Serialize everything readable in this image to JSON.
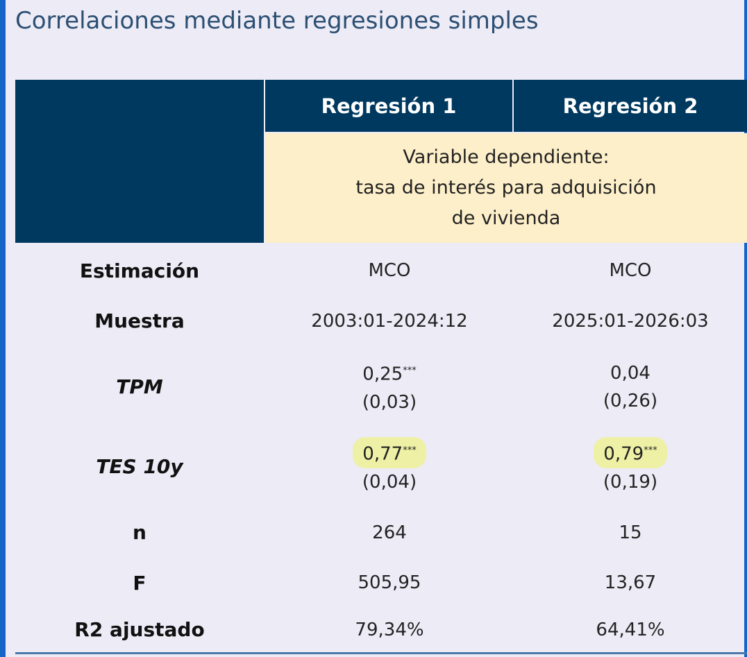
{
  "title": "Correlaciones mediante regresiones simples",
  "table": {
    "columns": [
      "Regresión 1",
      "Regresión 2"
    ],
    "dependent_variable": [
      "Variable dependiente:",
      "tasa de interés para adquisición",
      "de vivienda"
    ],
    "rows": [
      {
        "label": "Estimación",
        "italic": false,
        "cells": [
          {
            "text": "MCO"
          },
          {
            "text": "MCO"
          }
        ]
      },
      {
        "label": "Muestra",
        "italic": false,
        "cells": [
          {
            "text": "2003:01-2024:12"
          },
          {
            "text": "2025:01-2026:03"
          }
        ]
      },
      {
        "label": "TPM",
        "italic": true,
        "cells": [
          {
            "coef": "0,25",
            "stars": "***",
            "se": "(0,03)"
          },
          {
            "coef": "0,04",
            "se": "(0,26)"
          }
        ]
      },
      {
        "label": "TES 10y",
        "italic": true,
        "cells": [
          {
            "coef": "0,77",
            "stars": "***",
            "se": "(0,04)",
            "highlight": true
          },
          {
            "coef": "0,79",
            "stars": "***",
            "se": "(0,19)",
            "highlight": true
          }
        ]
      },
      {
        "label": "n",
        "italic": false,
        "cells": [
          {
            "text": "264"
          },
          {
            "text": "15"
          }
        ]
      },
      {
        "label": "F",
        "italic": false,
        "cells": [
          {
            "text": "505,95"
          },
          {
            "text": "13,67"
          }
        ]
      },
      {
        "label": "R2 ajustado",
        "italic": false,
        "cells": [
          {
            "text": "79,34%"
          },
          {
            "text": "64,41%"
          }
        ]
      }
    ]
  }
}
